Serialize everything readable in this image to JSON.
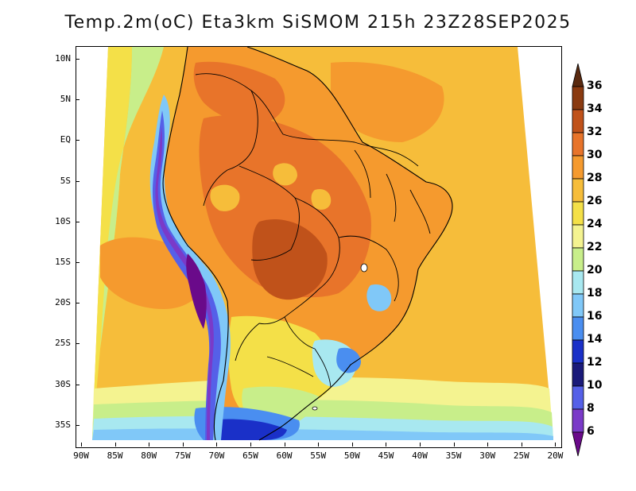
{
  "title": "Temp.2m(oC) Eta3km SiSMOM 215h 23Z28SEP2025",
  "latitude_labels": [
    "10N",
    "5N",
    "EQ",
    "5S",
    "10S",
    "15S",
    "20S",
    "25S",
    "30S",
    "35S"
  ],
  "longitude_labels": [
    "90W",
    "85W",
    "80W",
    "75W",
    "70W",
    "65W",
    "60W",
    "55W",
    "50W",
    "45W",
    "40W",
    "35W",
    "30W",
    "25W",
    "20W"
  ],
  "colorbar": {
    "labels": [
      "36",
      "34",
      "32",
      "30",
      "28",
      "26",
      "24",
      "22",
      "20",
      "18",
      "16",
      "14",
      "12",
      "10",
      "8",
      "6"
    ],
    "colors": [
      "#5a2a10",
      "#8a3a10",
      "#c0521a",
      "#e8742a",
      "#f59a2e",
      "#f6bd3a",
      "#f4e048",
      "#f4f390",
      "#c8ee8a",
      "#a8e8f0",
      "#80c8f8",
      "#4a8ef0",
      "#1a30c8",
      "#1a1a7a",
      "#5560e8",
      "#7a3ac8",
      "#6a0a8a"
    ],
    "arrow_top_color": "#5a2a10",
    "arrow_bottom_color": "#6a0a8a"
  },
  "field_colors": {
    "ocean_warm": "#f6bd3a",
    "ocean_hot": "#f59a2e",
    "ocean_mid": "#f4e048",
    "ocean_cool": "#c8ee8a",
    "ocean_cold": "#a8e8f0",
    "ocean_south": "#80c8f8",
    "ocean_far_south": "#4a8ef0",
    "land_hot": "#e8742a",
    "land_very_hot": "#c0521a",
    "land_warm": "#f59a2e",
    "land_mild": "#f4e048",
    "andes_cold": "#5560e8",
    "andes_very_cold": "#6a0a8a",
    "andes_frigid": "#7a3ac8",
    "highland_cool": "#80c8f8",
    "boundary": "#000000"
  }
}
